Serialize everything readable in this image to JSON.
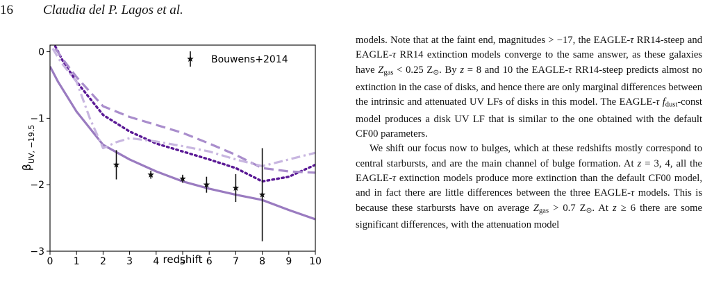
{
  "page": {
    "page_number": "16",
    "running_head": "Claudia del P. Lagos et al."
  },
  "chart_data": {
    "type": "line",
    "xlabel": "redshift",
    "ylabel": "βUV, −19.5",
    "xlim": [
      0,
      10
    ],
    "ylim": [
      -3,
      0.1
    ],
    "xticks": [
      0,
      1,
      2,
      3,
      4,
      5,
      6,
      7,
      8,
      9,
      10
    ],
    "yticks": [
      0,
      -1,
      -2,
      -3
    ],
    "ytick_labels": [
      "0",
      "−1",
      "−2",
      "−3"
    ],
    "legend_position": "top-right",
    "grid": false,
    "series": [
      {
        "style": "solid",
        "color": "#9a7bc0",
        "x": [
          0,
          0.3,
          1,
          2,
          3,
          4,
          5,
          6,
          7,
          8,
          9,
          10
        ],
        "y": [
          -0.22,
          -0.45,
          -0.9,
          -1.4,
          -1.62,
          -1.8,
          -1.95,
          -2.06,
          -2.15,
          -2.23,
          -2.38,
          -2.52
        ]
      },
      {
        "style": "dotted",
        "color": "#5b1a96",
        "x": [
          0.2,
          0.5,
          1,
          2,
          3,
          4,
          5,
          6,
          7,
          8,
          9,
          10
        ],
        "y": [
          0.08,
          -0.15,
          -0.45,
          -0.95,
          -1.2,
          -1.38,
          -1.5,
          -1.62,
          -1.75,
          -1.95,
          -1.88,
          -1.7
        ]
      },
      {
        "style": "dashed",
        "color": "#a98dcc",
        "x": [
          0.2,
          0.5,
          1,
          2,
          3,
          4,
          5,
          6,
          7,
          8,
          9,
          10
        ],
        "y": [
          0.05,
          -0.12,
          -0.38,
          -0.82,
          -0.98,
          -1.1,
          -1.22,
          -1.38,
          -1.55,
          -1.75,
          -1.8,
          -1.82
        ]
      },
      {
        "style": "dashdot",
        "color": "#c8b6e0",
        "x": [
          0.1,
          0.4,
          1,
          1.5,
          2,
          2.5,
          3,
          4,
          5,
          6,
          7,
          8,
          9,
          10
        ],
        "y": [
          0.05,
          -0.15,
          -0.45,
          -1.0,
          -1.45,
          -1.36,
          -1.3,
          -1.35,
          -1.42,
          -1.5,
          -1.62,
          -1.72,
          -1.62,
          -1.52
        ]
      }
    ],
    "observations": {
      "name": "Bouwens+2014",
      "color": "#111111",
      "points": [
        {
          "x": 2.5,
          "y": -1.7,
          "err": 0.22
        },
        {
          "x": 3.8,
          "y": -1.85,
          "err": 0.06
        },
        {
          "x": 5.0,
          "y": -1.91,
          "err": 0.06
        },
        {
          "x": 5.9,
          "y": -2.0,
          "err": 0.12
        },
        {
          "x": 7.0,
          "y": -2.05,
          "err": 0.21
        },
        {
          "x": 8.0,
          "y": -2.15,
          "err": 0.7
        }
      ]
    }
  },
  "text": {
    "p1": {
      "a": "models. Note that at the faint end, magnitudes > −17, the EAGLE-",
      "tau1": "τ",
      "b": " RR14-steep and EAGLE-",
      "tau2": "τ",
      "c": " RR14 extinction models converge to the same answer, as these galaxies have ",
      "z1": "Z",
      "z1sub": "gas",
      "d": " < 0.25 Z",
      "sun1": "⊙",
      "e": ". By ",
      "zv1": "z",
      "f": " = 8 and 10 the EAGLE-",
      "tau3": "τ",
      "g": " RR14-steep predicts almost no extinction in the case of disks, and hence there are only marginal differences between the intrinsic and attenuated UV LFs of disks in this model. The EAGLE-",
      "tau4": "τ",
      "h": " ",
      "fd": "f",
      "fdsub": "dust",
      "i": "-const model produces a disk UV LF that is similar to the one obtained with the default CF00 parameters."
    },
    "p2": {
      "a": "We shift our focus now to bulges, which at these redshifts mostly correspond to central starbursts, and are the main channel of bulge formation. At ",
      "zv1": "z",
      "b": " = 3, 4, all the EAGLE-",
      "tau1": "τ",
      "c": " extinction models produce more extinction than the default CF00 model, and in fact there are little differences between the three EAGLE-",
      "tau2": "τ",
      "d": " models. This is because these starbursts have on average ",
      "z2": "Z",
      "z2sub": "gas",
      "e": " > 0.7 Z",
      "sun2": "⊙",
      "f": ". At ",
      "zv2": "z",
      "g": " ≥ 6 there are some significant differences, with the attenuation model"
    }
  }
}
